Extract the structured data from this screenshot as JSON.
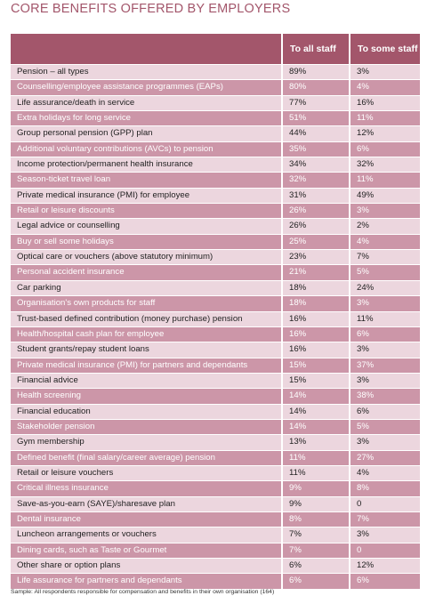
{
  "title": "CORE BENEFITS OFFERED BY EMPLOYERS",
  "columns": [
    "",
    "To all staff",
    "To some staff"
  ],
  "rows": [
    {
      "benefit": "Pension – all types",
      "all": "89%",
      "some": "3%"
    },
    {
      "benefit": "Counselling/employee assistance programmes (EAPs)",
      "all": "80%",
      "some": "4%"
    },
    {
      "benefit": "Life assurance/death in service",
      "all": "77%",
      "some": "16%"
    },
    {
      "benefit": "Extra holidays for long service",
      "all": "51%",
      "some": "11%"
    },
    {
      "benefit": "Group personal pension (GPP) plan",
      "all": "44%",
      "some": "12%"
    },
    {
      "benefit": "Additional voluntary contributions (AVCs) to pension",
      "all": "35%",
      "some": "6%"
    },
    {
      "benefit": "Income protection/permanent health insurance",
      "all": "34%",
      "some": "32%"
    },
    {
      "benefit": "Season-ticket travel loan",
      "all": "32%",
      "some": "11%"
    },
    {
      "benefit": "Private medical insurance (PMI) for employee",
      "all": "31%",
      "some": "49%"
    },
    {
      "benefit": "Retail or leisure discounts",
      "all": "26%",
      "some": "3%"
    },
    {
      "benefit": "Legal advice or counselling",
      "all": "26%",
      "some": "2%"
    },
    {
      "benefit": "Buy or sell some holidays",
      "all": "25%",
      "some": "4%"
    },
    {
      "benefit": "Optical care or vouchers (above statutory minimum)",
      "all": "23%",
      "some": "7%"
    },
    {
      "benefit": "Personal accident insurance",
      "all": "21%",
      "some": "5%"
    },
    {
      "benefit": "Car parking",
      "all": "18%",
      "some": "24%"
    },
    {
      "benefit": "Organisation's own products for staff",
      "all": "18%",
      "some": "3%"
    },
    {
      "benefit": "Trust-based defined contribution (money purchase) pension",
      "all": "16%",
      "some": "11%"
    },
    {
      "benefit": "Health/hospital cash plan for employee",
      "all": "16%",
      "some": "6%"
    },
    {
      "benefit": "Student grants/repay student loans",
      "all": "16%",
      "some": "3%"
    },
    {
      "benefit": "Private medical insurance (PMI) for partners and dependants",
      "all": "15%",
      "some": "37%"
    },
    {
      "benefit": "Financial advice",
      "all": "15%",
      "some": "3%"
    },
    {
      "benefit": "Health screening",
      "all": "14%",
      "some": "38%"
    },
    {
      "benefit": "Financial education",
      "all": "14%",
      "some": "6%"
    },
    {
      "benefit": "Stakeholder pension",
      "all": "14%",
      "some": "5%"
    },
    {
      "benefit": "Gym membership",
      "all": "13%",
      "some": "3%"
    },
    {
      "benefit": "Defined benefit (final salary/career average) pension",
      "all": "11%",
      "some": "27%"
    },
    {
      "benefit": "Retail or leisure vouchers",
      "all": "11%",
      "some": "4%"
    },
    {
      "benefit": "Critical illness insurance",
      "all": "9%",
      "some": "8%"
    },
    {
      "benefit": "Save-as-you-earn (SAYE)/sharesave plan",
      "all": "9%",
      "some": "0"
    },
    {
      "benefit": "Dental insurance",
      "all": "8%",
      "some": "7%"
    },
    {
      "benefit": "Luncheon arrangements or vouchers",
      "all": "7%",
      "some": "3%"
    },
    {
      "benefit": "Dining cards, such as Taste or Gourmet",
      "all": "7%",
      "some": "0"
    },
    {
      "benefit": "Other share or option plans",
      "all": "6%",
      "some": "12%"
    },
    {
      "benefit": "Life assurance for partners and dependants",
      "all": "6%",
      "some": "6%"
    }
  ],
  "footnote": "Sample: All respondents responsible for compensation and benefits in their own organisation (164)",
  "colors": {
    "header": "#a3566b",
    "row_light": "#ecd6de",
    "row_dark": "#cc96a8",
    "title": "#a3566b"
  }
}
